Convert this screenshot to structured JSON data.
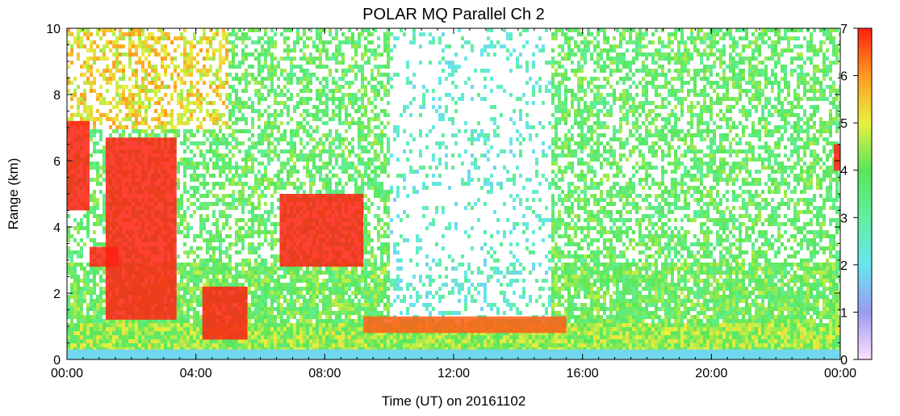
{
  "chart_data": {
    "type": "heatmap",
    "title": "POLAR MQ Parallel Ch 2",
    "xlabel": "Time (UT) on 20161102",
    "ylabel": "Range (km)",
    "x_range_hours": [
      0,
      24
    ],
    "ylim": [
      0,
      10
    ],
    "x_ticks": [
      "00:00",
      "04:00",
      "08:00",
      "12:00",
      "16:00",
      "20:00",
      "00:00"
    ],
    "y_ticks": [
      "0",
      "2",
      "4",
      "6",
      "8",
      "10"
    ],
    "colorbar": {
      "range": [
        0,
        7
      ],
      "ticks": [
        "0",
        "1",
        "2",
        "3",
        "4",
        "5",
        "6",
        "7"
      ],
      "colors": [
        "#ffe0ff",
        "#9b9bf0",
        "#66e6f0",
        "#60f0a0",
        "#5ae65a",
        "#e8f040",
        "#ff9a20",
        "#ff2010"
      ]
    },
    "features": [
      {
        "name": "surface layer",
        "range_km": [
          0,
          0.3
        ],
        "level": 1.5
      },
      {
        "name": "boundary layer",
        "range_km": [
          0.3,
          1.2
        ],
        "level": 4.5
      },
      {
        "name": "cloud",
        "time_h": [
          0,
          0.7
        ],
        "range_km": [
          4.5,
          7.2
        ],
        "level": 7
      },
      {
        "name": "cloud",
        "time_h": [
          1.2,
          3.4
        ],
        "range_km": [
          1.2,
          6.7
        ],
        "level": 7
      },
      {
        "name": "cloud",
        "time_h": [
          0.7,
          1.6
        ],
        "range_km": [
          2.8,
          3.4
        ],
        "level": 7
      },
      {
        "name": "cloud",
        "time_h": [
          4.2,
          5.6
        ],
        "range_km": [
          0.6,
          2.2
        ],
        "level": 7
      },
      {
        "name": "cloud",
        "time_h": [
          6.6,
          9.2
        ],
        "range_km": [
          2.8,
          5.0
        ],
        "level": 7
      },
      {
        "name": "cloud",
        "time_h": [
          9.2,
          15.5
        ],
        "range_km": [
          0.8,
          1.3
        ],
        "level": 6.5
      },
      {
        "name": "cloud",
        "time_h": [
          23.8,
          24
        ],
        "range_km": [
          5.7,
          6.5
        ],
        "level": 7
      }
    ]
  }
}
